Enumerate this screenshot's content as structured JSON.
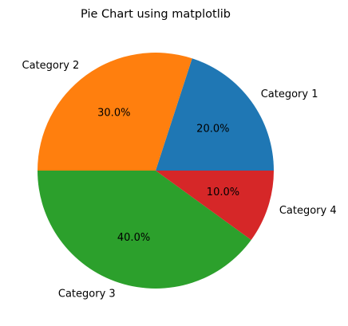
{
  "chart_data": {
    "type": "pie",
    "title": "Pie Chart using matplotlib",
    "categories": [
      "Category 1",
      "Category 2",
      "Category 3",
      "Category 4"
    ],
    "values": [
      20,
      30,
      40,
      10
    ],
    "percent_labels": [
      "20.0%",
      "30.0%",
      "40.0%",
      "10.0%"
    ],
    "colors": [
      "#1f77b4",
      "#ff7f0e",
      "#2ca02c",
      "#d62728"
    ],
    "start_angle_deg": 0,
    "direction": "counterclockwise"
  }
}
